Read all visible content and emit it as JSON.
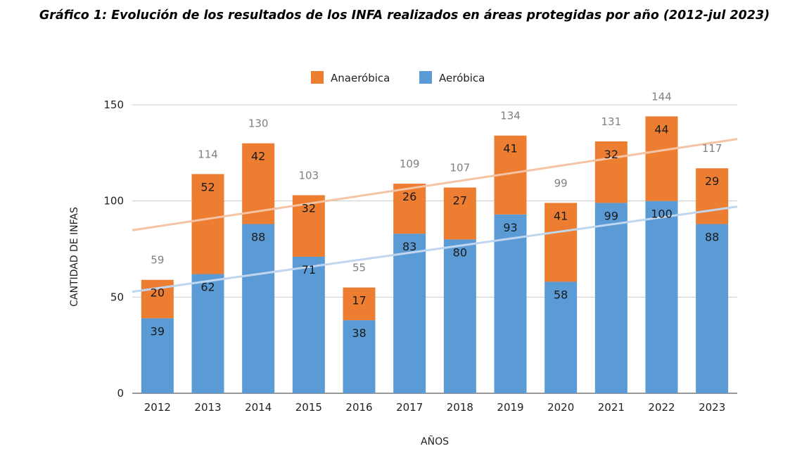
{
  "chart_data": {
    "type": "bar",
    "stacked": true,
    "title": "Gráfico 1: Evolución de los resultados de los INFA realizados en áreas protegidas por año (2012-jul 2023)",
    "xlabel": "AÑOS",
    "ylabel": "CANTIDAD DE INFAS",
    "ylim": [
      0,
      150
    ],
    "yticks": [
      0,
      50,
      100,
      150
    ],
    "grid": true,
    "legend_position": "top",
    "categories": [
      "2012",
      "2013",
      "2014",
      "2015",
      "2016",
      "2017",
      "2018",
      "2019",
      "2020",
      "2021",
      "2022",
      "2023"
    ],
    "series": [
      {
        "name": "Aeróbica",
        "color": "#5b9bd5",
        "values": [
          39,
          62,
          88,
          71,
          38,
          83,
          80,
          93,
          58,
          99,
          100,
          88
        ]
      },
      {
        "name": "Anaeróbica",
        "color": "#ed7d31",
        "values": [
          20,
          52,
          42,
          32,
          17,
          26,
          27,
          41,
          41,
          32,
          44,
          29
        ]
      }
    ],
    "totals": [
      59,
      114,
      130,
      103,
      55,
      109,
      107,
      134,
      99,
      131,
      144,
      117
    ],
    "trendlines": [
      {
        "series": "Anaeróbica",
        "color": "#f4c4a4"
      },
      {
        "series": "Aeróbica",
        "color": "#c0d6ee"
      }
    ]
  }
}
